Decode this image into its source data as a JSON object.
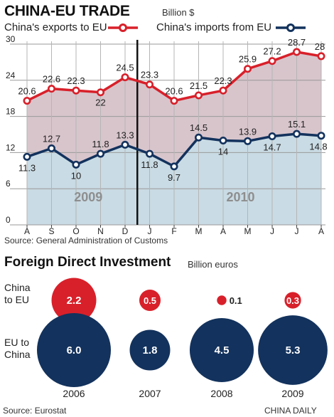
{
  "trade": {
    "title": "CHINA-EU TRADE",
    "unit": "Billion $",
    "source": "Source: General Administration of Customs",
    "year_labels": [
      "2009",
      "2010"
    ]
  },
  "fdi": {
    "title": "Foreign Direct Investment",
    "unit": "Billion euros",
    "row_labels": [
      [
        "China",
        "to EU"
      ],
      [
        "EU to",
        "China"
      ]
    ],
    "source": "Source: Eurostat"
  },
  "credit": "CHINA DAILY",
  "colors": {
    "exports": "#d8202a",
    "imports": "#13325d",
    "fill_top": "#d8c5cc",
    "fill_bottom": "#c9dbe4"
  },
  "chart_data": [
    {
      "type": "line",
      "title": "CHINA-EU TRADE",
      "ylabel": "Billion $",
      "categories": [
        "A",
        "S",
        "O",
        "N",
        "D",
        "J",
        "F",
        "M",
        "A",
        "M",
        "J",
        "J",
        "A"
      ],
      "ylim": [
        0,
        30
      ],
      "yticks": [
        0,
        6,
        12,
        18,
        24,
        30
      ],
      "grid": true,
      "series": [
        {
          "name": "China's exports to EU",
          "values": [
            20.6,
            22.6,
            22.3,
            22,
            24.5,
            23.3,
            20.6,
            21.5,
            22.3,
            25.9,
            27.2,
            28.7,
            28
          ]
        },
        {
          "name": "China's imports from EU",
          "values": [
            11.3,
            12.7,
            10,
            11.8,
            13.3,
            11.8,
            9.7,
            14.5,
            14,
            13.9,
            14.7,
            15.1,
            14.8
          ]
        }
      ]
    },
    {
      "type": "bubble",
      "title": "Foreign Direct Investment",
      "ylabel": "Billion euros",
      "categories": [
        "2006",
        "2007",
        "2008",
        "2009"
      ],
      "series": [
        {
          "name": "China to EU",
          "values": [
            2.2,
            0.5,
            0.1,
            0.3
          ]
        },
        {
          "name": "EU to China",
          "values": [
            6.0,
            1.8,
            4.5,
            5.3
          ]
        }
      ]
    }
  ]
}
